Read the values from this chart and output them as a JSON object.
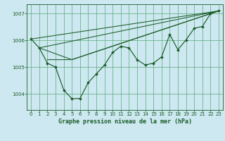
{
  "title": "Graphe pression niveau de la mer (hPa)",
  "bg_color": "#cde8f0",
  "grid_color": "#5aaa7a",
  "line_color": "#1a5c28",
  "marker_color": "#1a5c28",
  "ylim": [
    1003.4,
    1007.35
  ],
  "xlim": [
    -0.5,
    23.5
  ],
  "yticks": [
    1004,
    1005,
    1006,
    1007
  ],
  "xticks": [
    0,
    1,
    2,
    3,
    4,
    5,
    6,
    7,
    8,
    9,
    10,
    11,
    12,
    13,
    14,
    15,
    16,
    17,
    18,
    19,
    20,
    21,
    22,
    23
  ],
  "series_main": {
    "x": [
      0,
      1,
      2,
      3,
      4,
      5,
      6,
      7,
      8,
      9,
      10,
      11,
      12,
      13,
      14,
      15,
      16,
      17,
      18,
      19,
      20,
      21,
      22,
      23
    ],
    "y": [
      1006.05,
      1005.72,
      1005.15,
      1005.0,
      1004.15,
      1003.82,
      1003.83,
      1004.42,
      1004.75,
      1005.08,
      1005.55,
      1005.78,
      1005.72,
      1005.28,
      1005.08,
      1005.15,
      1005.38,
      1006.22,
      1005.65,
      1006.02,
      1006.45,
      1006.52,
      1007.0,
      1007.1
    ]
  },
  "line1": {
    "x": [
      0,
      23
    ],
    "y": [
      1006.05,
      1007.1
    ]
  },
  "line2": {
    "x": [
      1,
      23
    ],
    "y": [
      1005.72,
      1007.1
    ]
  },
  "line3": {
    "x": [
      1,
      5,
      23
    ],
    "y": [
      1005.72,
      1005.28,
      1007.1
    ]
  },
  "line4": {
    "x": [
      2,
      5,
      23
    ],
    "y": [
      1005.28,
      1005.28,
      1007.1
    ]
  }
}
